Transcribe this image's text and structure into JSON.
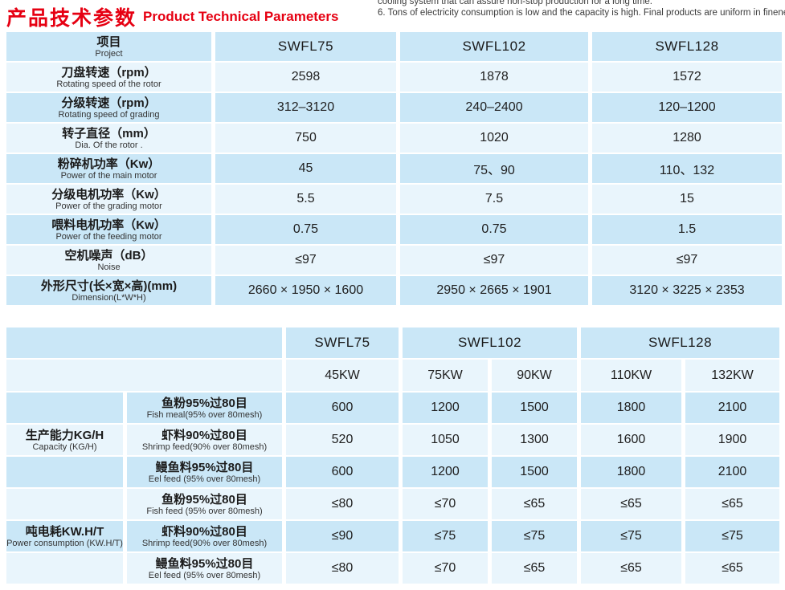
{
  "page": {
    "title_zh": "产品技术参数",
    "title_en": "Product Technical Parameters",
    "notes": {
      "line1": "cooling system that can assure non-stop production for a long time.",
      "line2": "6. Tons of electricity consumption is low and the capacity is high. Final products are uniform in fineness."
    },
    "colors": {
      "accent_red": "#e60012",
      "row_dark": "#cae7f7",
      "row_light": "#e9f5fc"
    }
  },
  "spec": {
    "header": {
      "zh": "项目",
      "en": "Project"
    },
    "models": {
      "m0": "SWFL75",
      "m1": "SWFL102",
      "m2": "SWFL128"
    },
    "rows": [
      {
        "zh": "刀盘转速（rpm）",
        "en": "Rotating speed of the rotor",
        "v0": "2598",
        "v1": "1878",
        "v2": "1572"
      },
      {
        "zh": "分级转速（rpm）",
        "en": "Rotating speed of grading",
        "v0": "312–3120",
        "v1": "240–2400",
        "v2": "120–1200"
      },
      {
        "zh": "转子直径（mm）",
        "en": "Dia. Of the rotor .",
        "v0": "750",
        "v1": "1020",
        "v2": "1280"
      },
      {
        "zh": "粉碎机功率（Kw）",
        "en": "Power of the main motor",
        "v0": "45",
        "v1": "75、90",
        "v2": "110、132"
      },
      {
        "zh": "分级电机功率（Kw）",
        "en": "Power of the grading motor",
        "v0": "5.5",
        "v1": "7.5",
        "v2": "15"
      },
      {
        "zh": "喂料电机功率（Kw）",
        "en": "Power of the feeding motor",
        "v0": "0.75",
        "v1": "0.75",
        "v2": "1.5"
      },
      {
        "zh": "空机噪声（dB）",
        "en": "Noise",
        "v0": "≤97",
        "v1": "≤97",
        "v2": "≤97"
      },
      {
        "zh": "外形尺寸(长×宽×高)(mm)",
        "en": "Dimension(L*W*H)",
        "v0": "2660 × 1950 × 1600",
        "v1": "2950 × 2665 × 1901",
        "v2": "3120 × 3225 × 2353"
      }
    ]
  },
  "perf": {
    "models": {
      "m0": "SWFL75",
      "m1": "SWFL102",
      "m2": "SWFL128"
    },
    "kw": {
      "k0": "45KW",
      "k1": "75KW",
      "k2": "90KW",
      "k3": "110KW",
      "k4": "132KW"
    },
    "groups": [
      {
        "zh": "生产能力KG/H",
        "en": "Capacity (KG/H)",
        "rows": [
          {
            "zh": "鱼粉95%过80目",
            "en": "Fish meal(95% over 80mesh)",
            "v0": "600",
            "v1": "1200",
            "v2": "1500",
            "v3": "1800",
            "v4": "2100"
          },
          {
            "zh": "虾料90%过80目",
            "en": "Shrimp feed(90% over 80mesh)",
            "v0": "520",
            "v1": "1050",
            "v2": "1300",
            "v3": "1600",
            "v4": "1900"
          },
          {
            "zh": "鳗鱼料95%过80目",
            "en": "Eel feed (95% over 80mesh)",
            "v0": "600",
            "v1": "1200",
            "v2": "1500",
            "v3": "1800",
            "v4": "2100"
          }
        ]
      },
      {
        "zh": "吨电耗KW.H/T",
        "en": "Power  consumption (KW.H/T)",
        "rows": [
          {
            "zh": "鱼粉95%过80目",
            "en": "Fish feed (95% over 80mesh)",
            "v0": "≤80",
            "v1": "≤70",
            "v2": "≤65",
            "v3": "≤65",
            "v4": "≤65"
          },
          {
            "zh": "虾料90%过80目",
            "en": "Shrimp feed(90% over 80mesh)",
            "v0": "≤90",
            "v1": "≤75",
            "v2": "≤75",
            "v3": "≤75",
            "v4": "≤75"
          },
          {
            "zh": "鳗鱼料95%过80目",
            "en": "Eel feed (95% over 80mesh)",
            "v0": "≤80",
            "v1": "≤70",
            "v2": "≤65",
            "v3": "≤65",
            "v4": "≤65"
          }
        ]
      }
    ]
  }
}
